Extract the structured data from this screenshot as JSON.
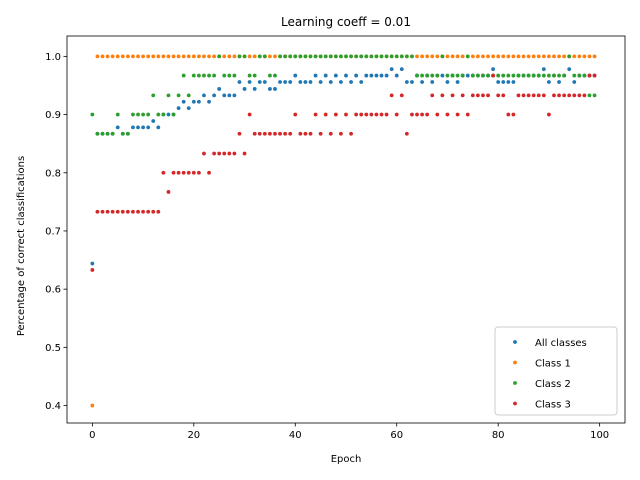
{
  "chart_data": {
    "type": "scatter",
    "title": "Learning coeff = 0.01",
    "xlabel": "Epoch",
    "ylabel": "Percentage of correct classifications",
    "xlim": [
      -5,
      105
    ],
    "ylim": [
      0.37,
      1.035
    ],
    "xticks": [
      0,
      20,
      40,
      60,
      80,
      100
    ],
    "yticks": [
      0.4,
      0.5,
      0.6,
      0.7,
      0.8,
      0.9,
      1.0
    ],
    "ytick_labels": [
      "0.4",
      "0.5",
      "0.6",
      "0.7",
      "0.8",
      "0.9",
      "1.0"
    ],
    "grid": false,
    "legend_position": "lower-right",
    "series": [
      {
        "name": "All classes",
        "color": "#1f77b4",
        "x": [
          0,
          1,
          2,
          3,
          4,
          5,
          6,
          7,
          8,
          9,
          10,
          11,
          12,
          13,
          14,
          15,
          16,
          17,
          18,
          19,
          20,
          21,
          22,
          23,
          24,
          25,
          26,
          27,
          28,
          29,
          30,
          31,
          32,
          33,
          34,
          35,
          36,
          37,
          38,
          39,
          40,
          41,
          42,
          43,
          44,
          45,
          46,
          47,
          48,
          49,
          50,
          51,
          52,
          53,
          54,
          55,
          56,
          57,
          58,
          59,
          60,
          61,
          62,
          63,
          64,
          65,
          66,
          67,
          68,
          69,
          70,
          71,
          72,
          73,
          74,
          75,
          76,
          77,
          78,
          79,
          80,
          81,
          82,
          83,
          84,
          85,
          86,
          87,
          88,
          89,
          90,
          91,
          92,
          93,
          94,
          95,
          96,
          97,
          98,
          99
        ],
        "y": [
          0.644,
          0.867,
          0.867,
          0.867,
          0.867,
          0.878,
          0.867,
          0.867,
          0.878,
          0.878,
          0.878,
          0.878,
          0.889,
          0.878,
          0.9,
          0.9,
          0.9,
          0.911,
          0.922,
          0.911,
          0.922,
          0.922,
          0.933,
          0.922,
          0.933,
          0.944,
          0.933,
          0.933,
          0.933,
          0.956,
          0.944,
          0.956,
          0.944,
          0.956,
          0.956,
          0.944,
          0.944,
          0.956,
          0.956,
          0.956,
          0.967,
          0.956,
          0.956,
          0.956,
          0.967,
          0.956,
          0.967,
          0.956,
          0.967,
          0.956,
          0.967,
          0.956,
          0.967,
          0.956,
          0.967,
          0.967,
          0.967,
          0.967,
          0.967,
          0.978,
          0.967,
          0.978,
          0.956,
          0.956,
          0.967,
          0.956,
          0.967,
          0.956,
          0.967,
          0.967,
          0.956,
          0.967,
          0.956,
          0.967,
          0.967,
          0.967,
          0.967,
          0.967,
          0.967,
          0.978,
          0.956,
          0.956,
          0.956,
          0.956,
          0.967,
          0.967,
          0.967,
          0.967,
          0.967,
          0.978,
          0.956,
          0.967,
          0.956,
          0.967,
          0.978,
          0.956,
          0.967,
          0.967,
          0.967,
          0.967
        ]
      },
      {
        "name": "Class 1",
        "color": "#ff7f0e",
        "x": [
          0,
          1,
          2,
          3,
          4,
          5,
          6,
          7,
          8,
          9,
          10,
          11,
          12,
          13,
          14,
          15,
          16,
          17,
          18,
          19,
          20,
          21,
          22,
          23,
          24,
          25,
          26,
          27,
          28,
          29,
          30,
          31,
          32,
          33,
          34,
          35,
          36,
          37,
          38,
          39,
          40,
          41,
          42,
          43,
          44,
          45,
          46,
          47,
          48,
          49,
          50,
          51,
          52,
          53,
          54,
          55,
          56,
          57,
          58,
          59,
          60,
          61,
          62,
          63,
          64,
          65,
          66,
          67,
          68,
          69,
          70,
          71,
          72,
          73,
          74,
          75,
          76,
          77,
          78,
          79,
          80,
          81,
          82,
          83,
          84,
          85,
          86,
          87,
          88,
          89,
          90,
          91,
          92,
          93,
          94,
          95,
          96,
          97,
          98,
          99
        ],
        "y": [
          0.4,
          1,
          1,
          1,
          1,
          1,
          1,
          1,
          1,
          1,
          1,
          1,
          1,
          1,
          1,
          1,
          1,
          1,
          1,
          1,
          1,
          1,
          1,
          1,
          1,
          1,
          1,
          1,
          1,
          1,
          1,
          1,
          1,
          1,
          1,
          1,
          1,
          1,
          1,
          1,
          1,
          1,
          1,
          1,
          1,
          1,
          1,
          1,
          1,
          1,
          1,
          1,
          1,
          1,
          1,
          1,
          1,
          1,
          1,
          1,
          1,
          1,
          1,
          1,
          1,
          1,
          1,
          1,
          1,
          1,
          1,
          1,
          1,
          1,
          1,
          1,
          1,
          1,
          1,
          1,
          1,
          1,
          1,
          1,
          1,
          1,
          1,
          1,
          1,
          1,
          1,
          1,
          1,
          1,
          1,
          1,
          1,
          1,
          1,
          1
        ]
      },
      {
        "name": "Class 2",
        "color": "#2ca02c",
        "x": [
          0,
          1,
          2,
          3,
          4,
          5,
          6,
          7,
          8,
          9,
          10,
          11,
          12,
          13,
          14,
          15,
          16,
          17,
          18,
          19,
          20,
          21,
          22,
          23,
          24,
          25,
          26,
          27,
          28,
          29,
          30,
          31,
          32,
          33,
          34,
          35,
          36,
          37,
          38,
          39,
          40,
          41,
          42,
          43,
          44,
          45,
          46,
          47,
          48,
          49,
          50,
          51,
          52,
          53,
          54,
          55,
          56,
          57,
          58,
          59,
          60,
          61,
          62,
          63,
          64,
          65,
          66,
          67,
          68,
          69,
          70,
          71,
          72,
          73,
          74,
          75,
          76,
          77,
          78,
          79,
          80,
          81,
          82,
          83,
          84,
          85,
          86,
          87,
          88,
          89,
          90,
          91,
          92,
          93,
          94,
          95,
          96,
          97,
          98,
          99
        ],
        "y": [
          0.9,
          0.867,
          0.867,
          0.867,
          0.867,
          0.9,
          0.867,
          0.867,
          0.9,
          0.9,
          0.9,
          0.9,
          0.933,
          0.9,
          0.9,
          0.933,
          0.9,
          0.933,
          0.967,
          0.933,
          0.967,
          0.967,
          0.967,
          0.967,
          0.967,
          1,
          0.967,
          0.967,
          0.967,
          1,
          1,
          0.967,
          0.967,
          1,
          1,
          0.967,
          0.967,
          1,
          1,
          1,
          1,
          1,
          1,
          1,
          1,
          1,
          1,
          1,
          1,
          1,
          1,
          1,
          1,
          1,
          1,
          1,
          1,
          1,
          1,
          1,
          1,
          1,
          1,
          1,
          0.967,
          0.967,
          0.967,
          0.967,
          0.967,
          1,
          0.967,
          0.967,
          0.967,
          0.967,
          1,
          0.967,
          0.967,
          0.967,
          0.967,
          0.967,
          0.967,
          0.967,
          0.967,
          0.967,
          0.967,
          0.967,
          0.967,
          0.967,
          0.967,
          0.967,
          0.967,
          0.967,
          0.967,
          0.967,
          1,
          0.967,
          0.967,
          0.967,
          0.933,
          0.933
        ]
      },
      {
        "name": "Class 3",
        "color": "#d62728",
        "x": [
          0,
          1,
          2,
          3,
          4,
          5,
          6,
          7,
          8,
          9,
          10,
          11,
          12,
          13,
          14,
          15,
          16,
          17,
          18,
          19,
          20,
          21,
          22,
          23,
          24,
          25,
          26,
          27,
          28,
          29,
          30,
          31,
          32,
          33,
          34,
          35,
          36,
          37,
          38,
          39,
          40,
          41,
          42,
          43,
          44,
          45,
          46,
          47,
          48,
          49,
          50,
          51,
          52,
          53,
          54,
          55,
          56,
          57,
          58,
          59,
          60,
          61,
          62,
          63,
          64,
          65,
          66,
          67,
          68,
          69,
          70,
          71,
          72,
          73,
          74,
          75,
          76,
          77,
          78,
          79,
          80,
          81,
          82,
          83,
          84,
          85,
          86,
          87,
          88,
          89,
          90,
          91,
          92,
          93,
          94,
          95,
          96,
          97,
          98,
          99
        ],
        "y": [
          0.633,
          0.733,
          0.733,
          0.733,
          0.733,
          0.733,
          0.733,
          0.733,
          0.733,
          0.733,
          0.733,
          0.733,
          0.733,
          0.733,
          0.8,
          0.767,
          0.8,
          0.8,
          0.8,
          0.8,
          0.8,
          0.8,
          0.833,
          0.8,
          0.833,
          0.833,
          0.833,
          0.833,
          0.833,
          0.867,
          0.833,
          0.9,
          0.867,
          0.867,
          0.867,
          0.867,
          0.867,
          0.867,
          0.867,
          0.867,
          0.9,
          0.867,
          0.867,
          0.867,
          0.9,
          0.867,
          0.9,
          0.867,
          0.9,
          0.867,
          0.9,
          0.867,
          0.9,
          0.9,
          0.9,
          0.9,
          0.9,
          0.9,
          0.9,
          0.933,
          0.9,
          0.933,
          0.867,
          0.9,
          0.9,
          0.9,
          0.9,
          0.933,
          0.9,
          0.933,
          0.9,
          0.933,
          0.9,
          0.933,
          0.9,
          0.933,
          0.933,
          0.933,
          0.933,
          0.967,
          0.933,
          0.933,
          0.9,
          0.9,
          0.933,
          0.933,
          0.933,
          0.933,
          0.933,
          0.933,
          0.9,
          0.933,
          0.933,
          0.933,
          0.933,
          0.933,
          0.933,
          0.933,
          0.967,
          0.967
        ]
      }
    ]
  }
}
